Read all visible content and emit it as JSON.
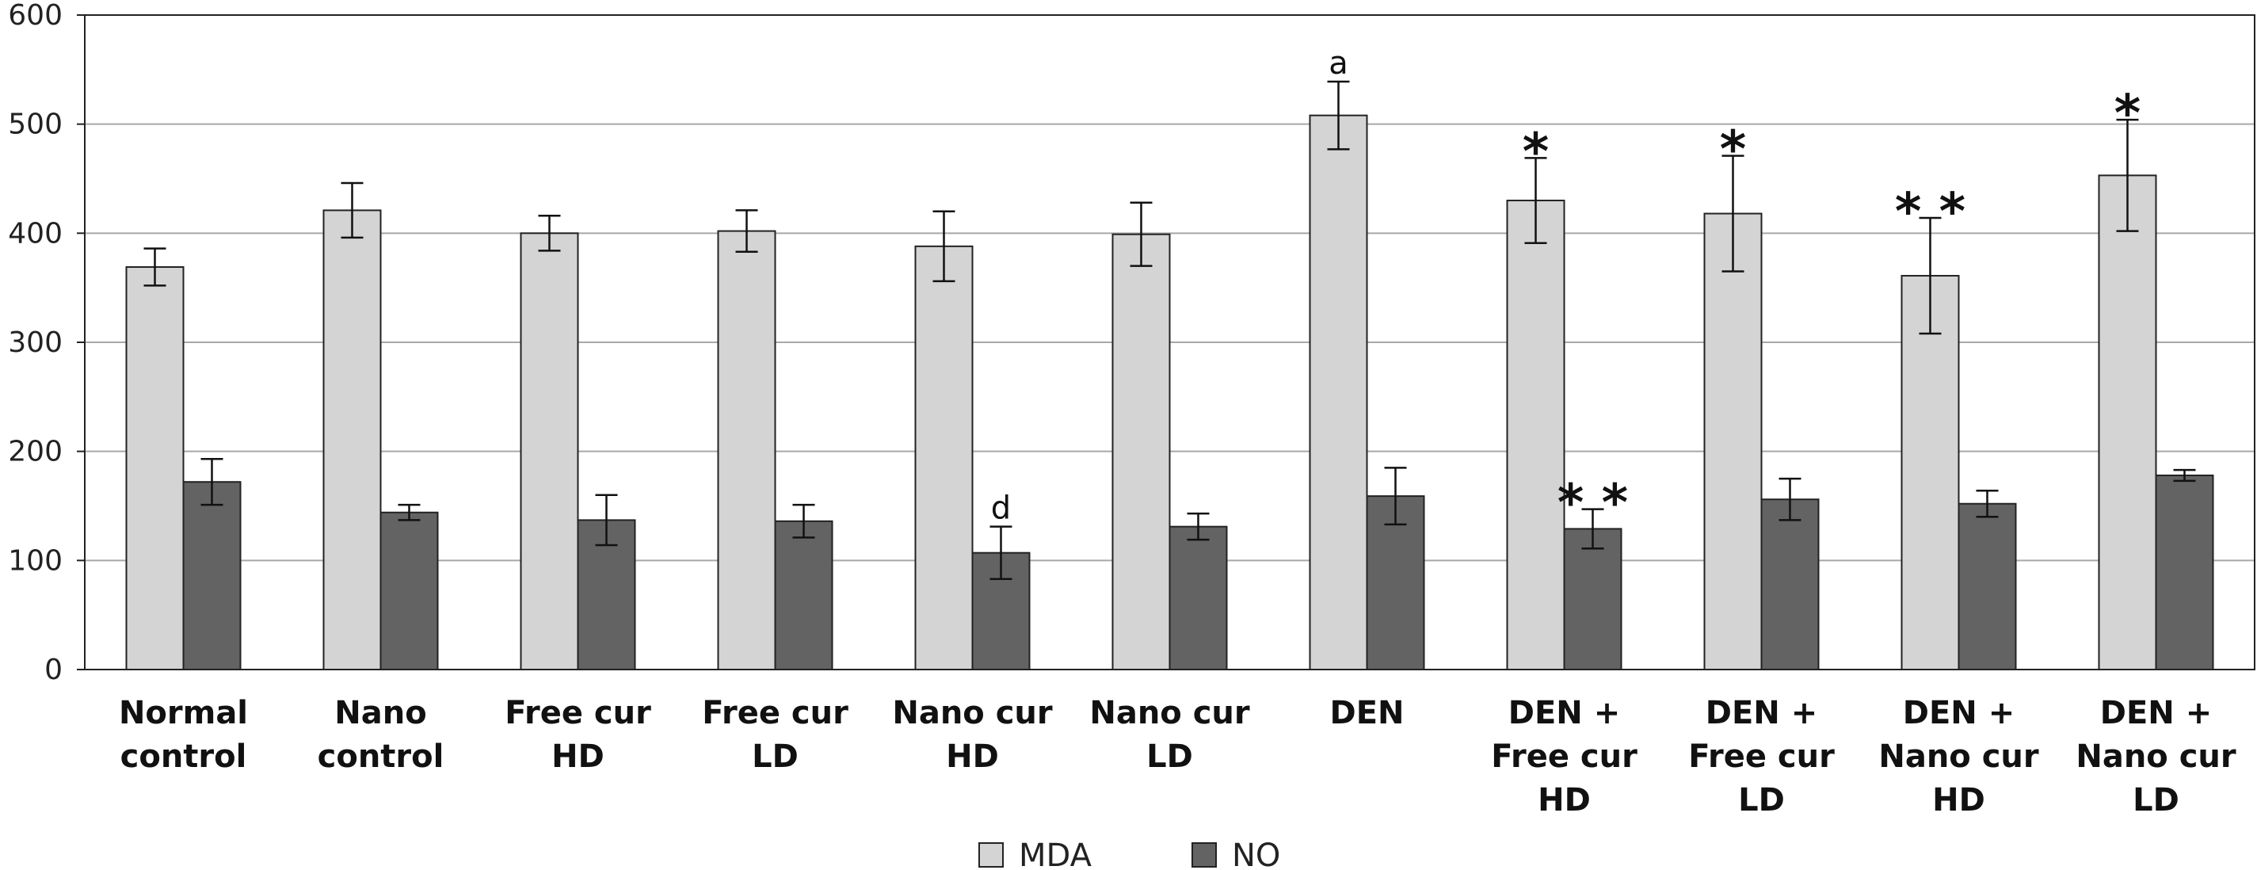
{
  "chart_data": {
    "type": "bar",
    "title": "",
    "xlabel": "",
    "ylabel": "",
    "ylim": [
      0,
      600
    ],
    "yticks": [
      "0",
      "100",
      "200",
      "300",
      "400",
      "500",
      "600"
    ],
    "grid": true,
    "legend_position": "bottom",
    "categories": [
      [
        "Normal",
        "control"
      ],
      [
        "Nano",
        "control"
      ],
      [
        "Free cur",
        "HD"
      ],
      [
        "Free cur",
        "LD"
      ],
      [
        "Nano cur",
        "HD"
      ],
      [
        "Nano cur",
        "LD"
      ],
      [
        "DEN"
      ],
      [
        "DEN +",
        "Free cur",
        "HD"
      ],
      [
        "DEN +",
        "Free cur",
        "LD"
      ],
      [
        "DEN +",
        "Nano cur",
        "HD"
      ],
      [
        "DEN +",
        "Nano cur",
        "LD"
      ]
    ],
    "series": [
      {
        "name": "MDA",
        "color": "#d4d4d4",
        "values": [
          369,
          421,
          400,
          402,
          388,
          399,
          508,
          430,
          418,
          361,
          453
        ],
        "errors": [
          17,
          25,
          16,
          19,
          32,
          29,
          31,
          39,
          53,
          53,
          51
        ]
      },
      {
        "name": "NO",
        "color": "#636363",
        "values": [
          172,
          144,
          137,
          136,
          107,
          131,
          159,
          129,
          156,
          152,
          178
        ],
        "errors": [
          21,
          7,
          23,
          15,
          24,
          12,
          26,
          18,
          19,
          12,
          5
        ]
      }
    ],
    "annotations": [
      {
        "category": 6,
        "series": 0,
        "text": "a"
      },
      {
        "category": 4,
        "series": 1,
        "text": "d"
      },
      {
        "category": 7,
        "series": 0,
        "text": "*"
      },
      {
        "category": 7,
        "series": 1,
        "text": "**"
      },
      {
        "category": 8,
        "series": 0,
        "text": "*"
      },
      {
        "category": 9,
        "series": 0,
        "text": "**"
      },
      {
        "category": 10,
        "series": 0,
        "text": "*"
      }
    ]
  }
}
